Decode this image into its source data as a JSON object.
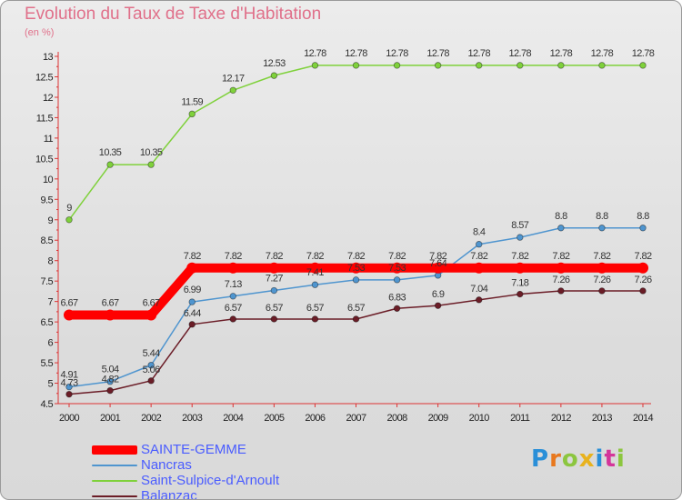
{
  "header": {
    "title": "Evolution du Taux de Taxe d'Habitation",
    "unit": "(en %)"
  },
  "brand": {
    "text": "Proxiti",
    "colors": [
      "#2a8fd8",
      "#e8781e",
      "#8cc63f",
      "#e8b21e",
      "#2a8fd8",
      "#d4359a",
      "#8cc63f"
    ]
  },
  "chart_data": {
    "type": "line",
    "title": "Evolution du Taux de Taxe d'Habitation",
    "ylabel": "(en %)",
    "xlabel": "",
    "x": [
      2000,
      2001,
      2002,
      2003,
      2004,
      2005,
      2006,
      2007,
      2008,
      2009,
      2010,
      2011,
      2012,
      2013,
      2014
    ],
    "ylim": [
      4.5,
      13
    ],
    "yticks": [
      4.5,
      5,
      5.5,
      6,
      6.5,
      7,
      7.5,
      8,
      8.5,
      9,
      9.5,
      10,
      10.5,
      11,
      11.5,
      12,
      12.5,
      13
    ],
    "grid": false,
    "legend_position": "bottom-left",
    "series": [
      {
        "name": "SAINTE-GEMME",
        "color": "#ff0000",
        "width": 10,
        "values": [
          6.67,
          6.67,
          6.67,
          7.82,
          7.82,
          7.82,
          7.82,
          7.82,
          7.82,
          7.82,
          7.82,
          7.82,
          7.82,
          7.82,
          7.82
        ],
        "labels": [
          "6.67",
          "6.67",
          "6.67",
          "7.82",
          "7.82",
          "7.82",
          "7.82",
          "7.82",
          "7.82",
          "7.82",
          "7.82",
          "7.82",
          "7.82",
          "7.82",
          "7.82"
        ]
      },
      {
        "name": "Nancras",
        "color": "#4f95cf",
        "width": 1.5,
        "values": [
          4.91,
          5.04,
          5.44,
          6.99,
          7.13,
          7.27,
          7.41,
          7.53,
          7.53,
          7.64,
          8.4,
          8.57,
          8.8,
          8.8,
          8.8
        ],
        "labels": [
          "4.91",
          "5.04",
          "5.44",
          "6.99",
          "7.13",
          "7.27",
          "7.41",
          "7.53",
          "7.53",
          "7.64",
          "8.4",
          "8.57",
          "8.8",
          "8.8",
          "8.8"
        ]
      },
      {
        "name": "Saint-Sulpice-d'Arnoult",
        "color": "#7fd13b",
        "width": 1.5,
        "values": [
          9,
          10.35,
          10.35,
          11.59,
          12.17,
          12.53,
          12.78,
          12.78,
          12.78,
          12.78,
          12.78,
          12.78,
          12.78,
          12.78,
          12.78
        ],
        "labels": [
          "9",
          "10.35",
          "10.35",
          "11.59",
          "12.17",
          "12.53",
          "12.78",
          "12.78",
          "12.78",
          "12.78",
          "12.78",
          "12.78",
          "12.78",
          "12.78",
          "12.78"
        ]
      },
      {
        "name": "Balanzac",
        "color": "#6b1d27",
        "width": 1.5,
        "values": [
          4.73,
          4.82,
          5.06,
          6.44,
          6.57,
          6.57,
          6.57,
          6.57,
          6.83,
          6.9,
          7.04,
          7.18,
          7.26,
          7.26,
          7.26
        ],
        "labels": [
          "4.73",
          "4.82",
          "5.06",
          "6.44",
          "6.57",
          "6.57",
          "6.57",
          "6.57",
          "6.83",
          "6.9",
          "7.04",
          "7.18",
          "7.26",
          "7.26",
          "7.26"
        ]
      }
    ]
  }
}
